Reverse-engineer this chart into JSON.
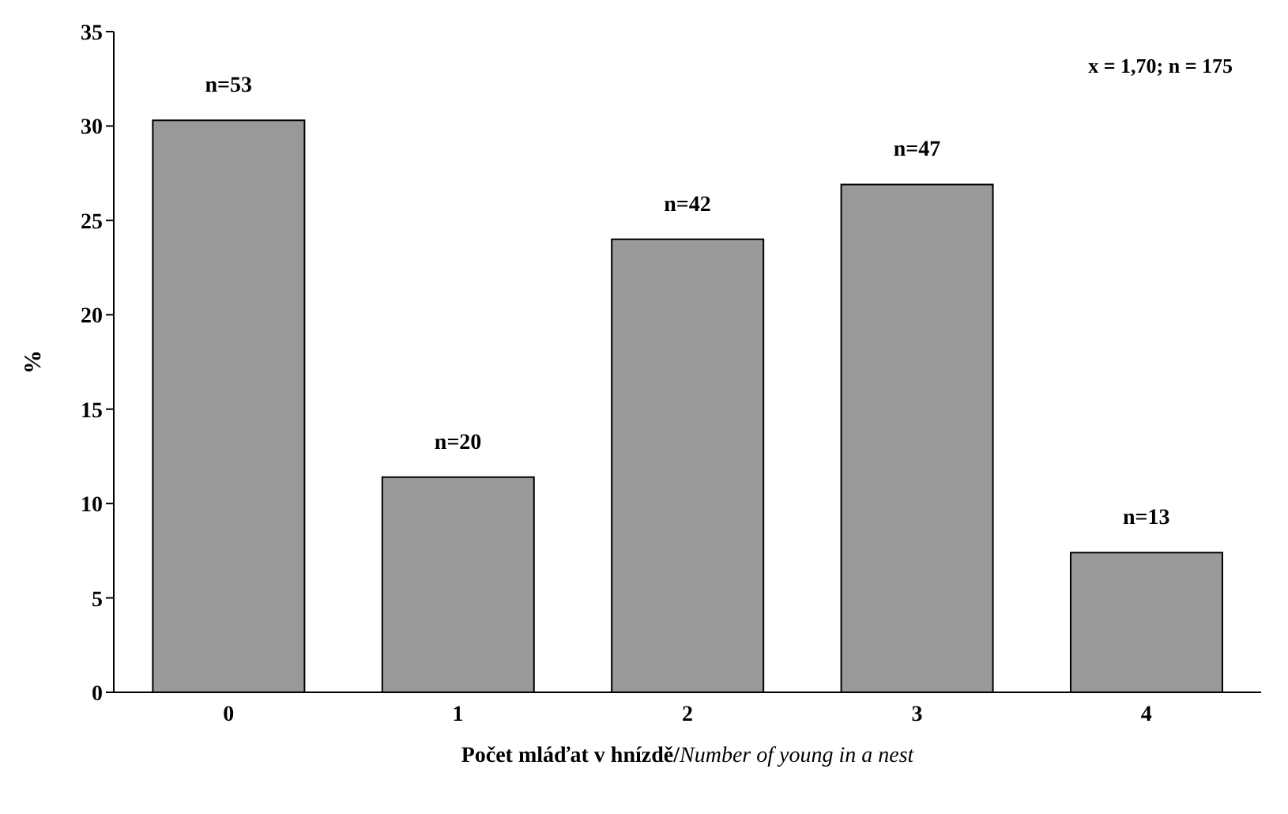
{
  "chart_data": {
    "type": "bar",
    "xlabel": "Počet mláďat v hnízdě/Number of young in a nest",
    "ylabel": "%",
    "categories": [
      "0",
      "1",
      "2",
      "3",
      "4"
    ],
    "values": [
      30.3,
      11.4,
      24.0,
      26.9,
      7.4
    ],
    "color": "#999999",
    "ylim": [
      0,
      35
    ],
    "yticks": [
      0,
      5,
      10,
      15,
      20,
      25,
      30,
      35
    ],
    "annotations": [
      "x = 1,70; n = 175",
      {
        "text": "n=53",
        "x": "0",
        "y": 30.3
      },
      {
        "text": "n=20",
        "x": "1",
        "y": 11.4
      },
      {
        "text": "n=42",
        "x": "2",
        "y": 24.0
      },
      {
        "text": "n=47",
        "x": "3",
        "y": 26.9
      },
      {
        "text": "n=13",
        "x": "4",
        "y": 7.4
      }
    ],
    "grid": false,
    "legend": false
  }
}
